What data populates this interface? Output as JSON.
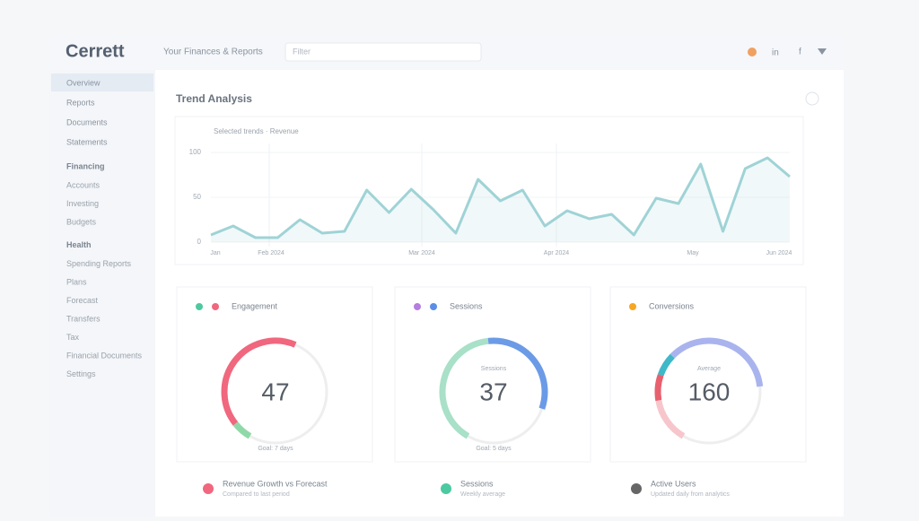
{
  "header": {
    "logo": "Cerrett",
    "subtitle": "Your Finances & Reports",
    "search_placeholder": "Filter"
  },
  "sidebar": {
    "top": [
      "Overview",
      "Reports",
      "Documents",
      "Statements"
    ],
    "sections": [
      {
        "heading": "Financing",
        "items": [
          "Accounts",
          "Investing",
          "Budgets"
        ]
      },
      {
        "heading": "Health",
        "items": [
          "Spending Reports",
          "Plans",
          "Forecast",
          "Transfers",
          "Tax",
          "Financial Documents",
          "Settings"
        ]
      }
    ]
  },
  "trend": {
    "title": "Trend Analysis",
    "legend": "Selected trends · Revenue",
    "color": "#9fd3d6",
    "ylim": [
      0,
      105
    ],
    "yticks": [
      0,
      50,
      100
    ],
    "x_labels": [
      "Jan",
      "Feb 2024",
      "Mar 2024",
      "Apr 2024",
      "May",
      "Jun 2024"
    ],
    "values": [
      8,
      18,
      5,
      5,
      25,
      10,
      12,
      58,
      33,
      59,
      36,
      10,
      70,
      46,
      58,
      18,
      35,
      26,
      31,
      8,
      49,
      43,
      87,
      12,
      82,
      94,
      73
    ]
  },
  "gauges": [
    {
      "title": "Engagement",
      "value": 47,
      "caption": "Goal: 7 days",
      "dots": [
        "#4cc9a0",
        "#f0677e"
      ],
      "segments": [
        {
          "color": "#8fd9a8",
          "value": 6
        },
        {
          "color": "#f0677e",
          "value": 42
        }
      ]
    },
    {
      "title": "Sessions",
      "label": "Sessions",
      "value": 37,
      "caption": "Goal: 5 days",
      "dots": [
        "#b57de0",
        "#5b8ee6"
      ],
      "segments": [
        {
          "color": "#a8e0c8",
          "value": 40
        },
        {
          "color": "#6b9be6",
          "value": 32
        }
      ]
    },
    {
      "title": "Conversions",
      "label": "Average",
      "value": 160,
      "dots": [
        "#f5a623"
      ],
      "segments": [
        {
          "color": "#f7c6cc",
          "value": 14
        },
        {
          "color": "#e8606e",
          "value": 8
        },
        {
          "color": "#3fb8c8",
          "value": 7
        },
        {
          "color": "#a9b4ee",
          "value": 36
        }
      ]
    }
  ],
  "legend": [
    {
      "color": "#f0677e",
      "label": "Revenue Growth vs Forecast",
      "sub": "Compared to last period"
    },
    {
      "color": "#4cc9a0",
      "label": "Sessions",
      "sub": "Weekly average"
    },
    {
      "color": "#666666",
      "label": "Active Users",
      "sub": "Updated daily from analytics"
    }
  ]
}
